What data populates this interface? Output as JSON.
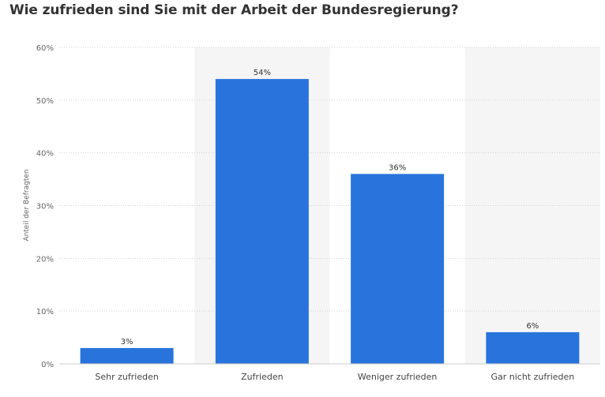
{
  "chart_data": {
    "type": "bar",
    "title": "Wie zufrieden sind Sie mit der Arbeit der Bundesregierung?",
    "xlabel": "",
    "ylabel": "Anteil der Befragten",
    "categories": [
      "Sehr zufrieden",
      "Zufrieden",
      "Weniger zufrieden",
      "Gar nicht zufrieden"
    ],
    "values": [
      3,
      54,
      36,
      6
    ],
    "value_labels": [
      "3%",
      "54%",
      "36%",
      "6%"
    ],
    "ylim": [
      0,
      60
    ],
    "yticks": [
      0,
      10,
      20,
      30,
      40,
      50,
      60
    ],
    "ytick_labels": [
      "0%",
      "10%",
      "20%",
      "30%",
      "40%",
      "50%",
      "60%"
    ],
    "grid": true,
    "bar_color": "#2874dc",
    "band_color": "#f5f5f5"
  }
}
